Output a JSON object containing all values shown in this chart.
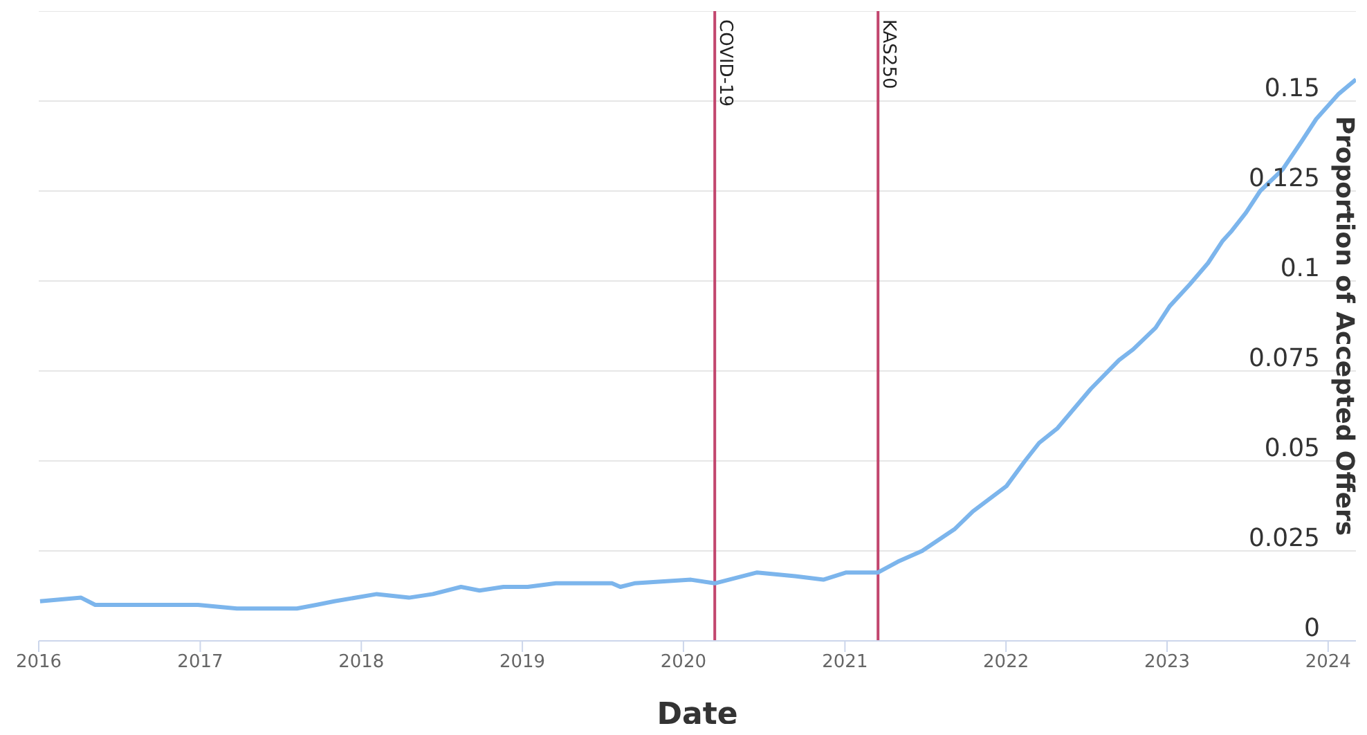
{
  "chart_data": {
    "type": "line",
    "xlabel": "Date",
    "ylabel": "Proportion of Accepted Offers",
    "x": [
      "2016-01-04",
      "2016-04-06",
      "2016-05-08",
      "2016-08-22",
      "2016-10-15",
      "2016-12-27",
      "2017-03-25",
      "2017-08-08",
      "2017-09-21",
      "2017-11-01",
      "2018-02-05",
      "2018-04-19",
      "2018-06-12",
      "2018-08-15",
      "2018-09-26",
      "2018-11-19",
      "2019-01-13",
      "2019-03-18",
      "2019-07-23",
      "2019-08-11",
      "2019-09-12",
      "2020-01-18",
      "2020-03-12",
      "2020-06-16",
      "2020-09-10",
      "2020-11-13",
      "2021-01-04",
      "2021-03-17",
      "2021-05-01",
      "2021-06-25",
      "2021-09-06",
      "2021-10-18",
      "2022-01-02",
      "2022-02-13",
      "2022-03-17",
      "2022-04-27",
      "2022-07-12",
      "2022-09-14",
      "2022-10-16",
      "2022-12-06",
      "2023-01-07",
      "2023-02-21",
      "2023-04-04",
      "2023-05-06",
      "2023-05-28",
      "2023-06-29",
      "2023-07-31",
      "2023-09-20",
      "2023-11-03",
      "2023-12-05",
      "2024-01-25",
      "2024-03-04"
    ],
    "series": [
      {
        "color": "#7cb5ec",
        "values": [
          0.011,
          0.012,
          0.01,
          0.01,
          0.01,
          0.01,
          0.009,
          0.009,
          0.01,
          0.011,
          0.013,
          0.012,
          0.013,
          0.015,
          0.014,
          0.015,
          0.015,
          0.016,
          0.016,
          0.015,
          0.016,
          0.017,
          0.016,
          0.019,
          0.018,
          0.017,
          0.019,
          0.019,
          0.022,
          0.025,
          0.031,
          0.036,
          0.043,
          0.05,
          0.055,
          0.059,
          0.07,
          0.078,
          0.081,
          0.087,
          0.093,
          0.099,
          0.105,
          0.111,
          0.114,
          0.119,
          0.125,
          0.131,
          0.139,
          0.145,
          0.152,
          0.156
        ]
      }
    ],
    "xlim": [
      "2016-01-01",
      "2024-03-04"
    ],
    "xticks": [
      {
        "value": "2016-01-01",
        "label": "2016"
      },
      {
        "value": "2017-01-01",
        "label": "2017"
      },
      {
        "value": "2018-01-01",
        "label": "2018"
      },
      {
        "value": "2019-01-01",
        "label": "2019"
      },
      {
        "value": "2020-01-01",
        "label": "2020"
      },
      {
        "value": "2021-01-01",
        "label": "2021"
      },
      {
        "value": "2022-01-01",
        "label": "2022"
      },
      {
        "value": "2023-01-01",
        "label": "2023"
      },
      {
        "value": "2024-01-01",
        "label": "2024"
      }
    ],
    "ylim": [
      0,
      0.175
    ],
    "yticks": [
      0,
      0.025,
      0.05,
      0.075,
      0.1,
      0.125,
      0.15,
      {
        "value": 0.175,
        "label": null
      }
    ],
    "ref_lines": [
      {
        "axis": "x",
        "value": "2020-03-12",
        "label": "COVID-19",
        "color": "#c2466e"
      },
      {
        "axis": "x",
        "value": "2021-03-17",
        "label": "KAS250",
        "color": "#c2466e"
      }
    ],
    "grid": "y",
    "marker": "none",
    "line_style": "solid"
  }
}
